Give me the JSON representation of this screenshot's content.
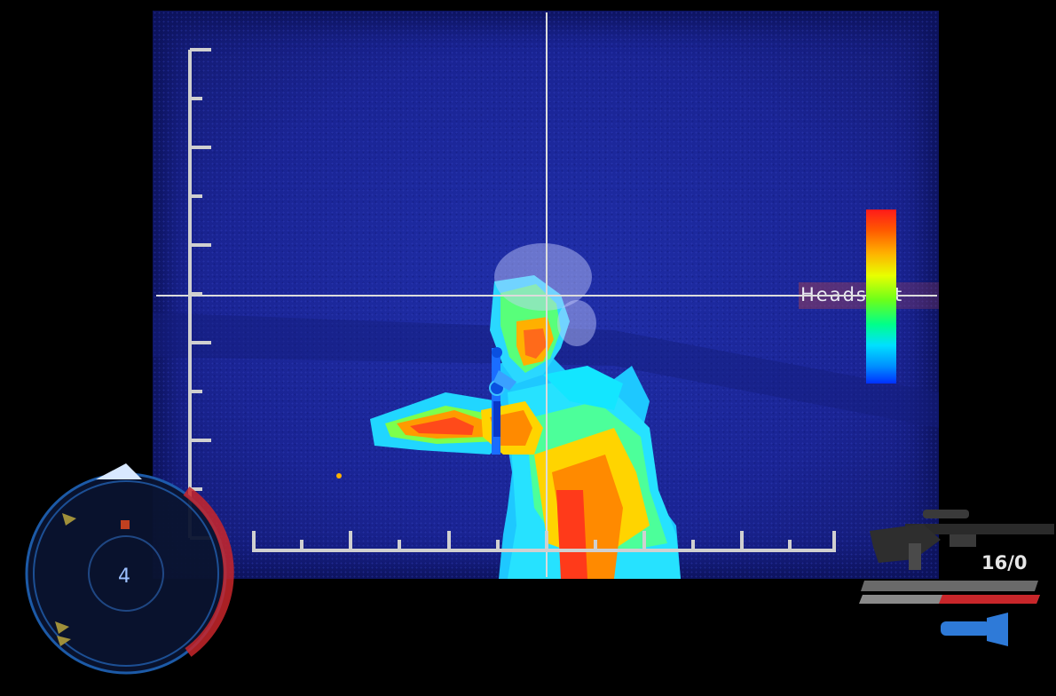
{
  "hud": {
    "target_label": "Headshot",
    "ammo": "16/0",
    "thermal_scale_colors": [
      "#ff1a1a",
      "#ff5a00",
      "#ff9a00",
      "#ffd400",
      "#e8ff00",
      "#9cff00",
      "#2cff2c",
      "#00ffa0",
      "#00e0ff",
      "#00a0ff",
      "#0040ff"
    ],
    "health_fill": 0.55,
    "compass_glyph": "4"
  },
  "icons": {
    "weapon": "assault-rifle-icon",
    "flashlight": "flashlight-icon",
    "radar": "radar-minimap",
    "crosshair": "crosshair"
  },
  "colors": {
    "thermal_background": "#1a2494",
    "hud_lines": "#d8d8d8",
    "radar_ring": "#2a6fd0",
    "health_red": "#c8262a"
  }
}
